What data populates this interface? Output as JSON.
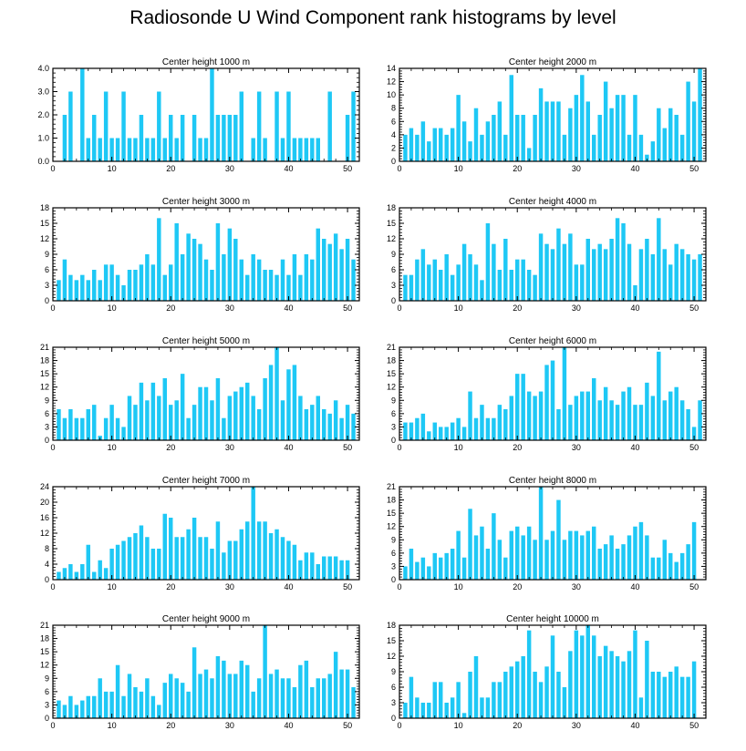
{
  "title": "Radiosonde U Wind Component rank histograms by level",
  "colors": {
    "bar": "#1ec8f5",
    "axis": "#000000",
    "background": "#ffffff"
  },
  "chart_data": [
    {
      "type": "bar",
      "title": "Center height 1000 m",
      "x": [
        1,
        2,
        3,
        4,
        5,
        6,
        7,
        8,
        9,
        10,
        11,
        12,
        13,
        14,
        15,
        16,
        17,
        18,
        19,
        20,
        21,
        22,
        23,
        24,
        25,
        26,
        27,
        28,
        29,
        30,
        31,
        32,
        33,
        34,
        35,
        36,
        37,
        38,
        39,
        40,
        41,
        42,
        43,
        44,
        45,
        46,
        47,
        48,
        49,
        50,
        51
      ],
      "values": [
        0,
        2,
        3,
        0,
        4,
        1,
        2,
        1,
        3,
        1,
        1,
        3,
        1,
        1,
        2,
        1,
        1,
        3,
        1,
        2,
        1,
        2,
        0,
        2,
        1,
        1,
        4,
        2,
        2,
        2,
        2,
        3,
        0,
        1,
        3,
        1,
        0,
        3,
        1,
        3,
        1,
        1,
        1,
        1,
        1,
        0,
        3,
        0,
        0,
        2,
        3
      ],
      "xlim": [
        0,
        52
      ],
      "ylim": [
        0,
        4
      ],
      "yticks": [
        0,
        1,
        2,
        3,
        4
      ],
      "ytick_labels": [
        "0.0",
        "1.0",
        "2.0",
        "3.0",
        "4.0"
      ],
      "xticks": [
        0,
        10,
        20,
        30,
        40,
        50
      ]
    },
    {
      "type": "bar",
      "title": "Center height 2000 m",
      "x": [
        1,
        2,
        3,
        4,
        5,
        6,
        7,
        8,
        9,
        10,
        11,
        12,
        13,
        14,
        15,
        16,
        17,
        18,
        19,
        20,
        21,
        22,
        23,
        24,
        25,
        26,
        27,
        28,
        29,
        30,
        31,
        32,
        33,
        34,
        35,
        36,
        37,
        38,
        39,
        40,
        41,
        42,
        43,
        44,
        45,
        46,
        47,
        48,
        49,
        50,
        51
      ],
      "values": [
        4,
        5,
        4,
        6,
        3,
        5,
        5,
        4,
        5,
        10,
        6,
        3,
        8,
        4,
        6,
        7,
        9,
        4,
        13,
        7,
        7,
        2,
        7,
        11,
        9,
        9,
        9,
        4,
        8,
        10,
        13,
        9,
        4,
        7,
        12,
        8,
        10,
        10,
        4,
        10,
        4,
        1,
        3,
        8,
        5,
        8,
        7,
        4,
        12,
        9,
        14
      ],
      "xlim": [
        0,
        52
      ],
      "ylim": [
        0,
        14
      ],
      "yticks": [
        0,
        2,
        4,
        6,
        8,
        10,
        12,
        14
      ],
      "ytick_labels": [
        "0",
        "2",
        "4",
        "6",
        "8",
        "10",
        "12",
        "14"
      ],
      "xticks": [
        0,
        10,
        20,
        30,
        40,
        50
      ]
    },
    {
      "type": "bar",
      "title": "Center height 3000 m",
      "x": [
        1,
        2,
        3,
        4,
        5,
        6,
        7,
        8,
        9,
        10,
        11,
        12,
        13,
        14,
        15,
        16,
        17,
        18,
        19,
        20,
        21,
        22,
        23,
        24,
        25,
        26,
        27,
        28,
        29,
        30,
        31,
        32,
        33,
        34,
        35,
        36,
        37,
        38,
        39,
        40,
        41,
        42,
        43,
        44,
        45,
        46,
        47,
        48,
        49,
        50,
        51
      ],
      "values": [
        4,
        8,
        5,
        4,
        5,
        4,
        6,
        4,
        7,
        7,
        5,
        3,
        6,
        6,
        7,
        9,
        7,
        16,
        5,
        7,
        15,
        9,
        13,
        12,
        11,
        8,
        6,
        15,
        9,
        14,
        12,
        8,
        5,
        9,
        8,
        6,
        6,
        5,
        8,
        5,
        9,
        5,
        9,
        8,
        14,
        12,
        11,
        13,
        10,
        12,
        8
      ],
      "xlim": [
        0,
        52
      ],
      "ylim": [
        0,
        18
      ],
      "yticks": [
        0,
        3,
        6,
        9,
        12,
        15,
        18
      ],
      "ytick_labels": [
        "0",
        "3",
        "6",
        "9",
        "12",
        "15",
        "18"
      ],
      "xticks": [
        0,
        10,
        20,
        30,
        40,
        50
      ]
    },
    {
      "type": "bar",
      "title": "Center height 4000 m",
      "x": [
        1,
        2,
        3,
        4,
        5,
        6,
        7,
        8,
        9,
        10,
        11,
        12,
        13,
        14,
        15,
        16,
        17,
        18,
        19,
        20,
        21,
        22,
        23,
        24,
        25,
        26,
        27,
        28,
        29,
        30,
        31,
        32,
        33,
        34,
        35,
        36,
        37,
        38,
        39,
        40,
        41,
        42,
        43,
        44,
        45,
        46,
        47,
        48,
        49,
        50,
        51
      ],
      "values": [
        5,
        5,
        8,
        10,
        7,
        8,
        6,
        9,
        5,
        7,
        11,
        9,
        7,
        4,
        15,
        11,
        6,
        12,
        6,
        8,
        8,
        6,
        5,
        13,
        11,
        10,
        14,
        11,
        13,
        7,
        7,
        12,
        10,
        11,
        10,
        12,
        16,
        15,
        11,
        3,
        10,
        12,
        9,
        16,
        10,
        7,
        11,
        10,
        9,
        8,
        9
      ],
      "xlim": [
        0,
        52
      ],
      "ylim": [
        0,
        18
      ],
      "yticks": [
        0,
        3,
        6,
        9,
        12,
        15,
        18
      ],
      "ytick_labels": [
        "0",
        "3",
        "6",
        "9",
        "12",
        "15",
        "18"
      ],
      "xticks": [
        0,
        10,
        20,
        30,
        40,
        50
      ]
    },
    {
      "type": "bar",
      "title": "Center height 5000 m",
      "x": [
        1,
        2,
        3,
        4,
        5,
        6,
        7,
        8,
        9,
        10,
        11,
        12,
        13,
        14,
        15,
        16,
        17,
        18,
        19,
        20,
        21,
        22,
        23,
        24,
        25,
        26,
        27,
        28,
        29,
        30,
        31,
        32,
        33,
        34,
        35,
        36,
        37,
        38,
        39,
        40,
        41,
        42,
        43,
        44,
        45,
        46,
        47,
        48,
        49,
        50,
        51
      ],
      "values": [
        7,
        5,
        7,
        5,
        5,
        7,
        8,
        1,
        5,
        8,
        5,
        3,
        10,
        8,
        13,
        9,
        13,
        10,
        14,
        8,
        9,
        15,
        5,
        8,
        12,
        12,
        9,
        14,
        5,
        10,
        11,
        12,
        13,
        10,
        7,
        14,
        17,
        21,
        9,
        16,
        17,
        10,
        7,
        8,
        10,
        7,
        6,
        9,
        5,
        8,
        6
      ],
      "xlim": [
        0,
        52
      ],
      "ylim": [
        0,
        21
      ],
      "yticks": [
        0,
        3,
        6,
        9,
        12,
        15,
        18,
        21
      ],
      "ytick_labels": [
        "0",
        "3",
        "6",
        "9",
        "12",
        "15",
        "18",
        "21"
      ],
      "xticks": [
        0,
        10,
        20,
        30,
        40,
        50
      ]
    },
    {
      "type": "bar",
      "title": "Center height 6000 m",
      "x": [
        1,
        2,
        3,
        4,
        5,
        6,
        7,
        8,
        9,
        10,
        11,
        12,
        13,
        14,
        15,
        16,
        17,
        18,
        19,
        20,
        21,
        22,
        23,
        24,
        25,
        26,
        27,
        28,
        29,
        30,
        31,
        32,
        33,
        34,
        35,
        36,
        37,
        38,
        39,
        40,
        41,
        42,
        43,
        44,
        45,
        46,
        47,
        48,
        49,
        50,
        51
      ],
      "values": [
        4,
        4,
        5,
        6,
        2,
        4,
        3,
        3,
        4,
        5,
        3,
        11,
        5,
        8,
        5,
        5,
        8,
        7,
        10,
        15,
        15,
        11,
        10,
        11,
        17,
        18,
        7,
        21,
        8,
        10,
        11,
        11,
        14,
        9,
        12,
        9,
        8,
        11,
        12,
        8,
        8,
        13,
        10,
        20,
        9,
        11,
        12,
        9,
        7,
        3,
        9
      ],
      "xlim": [
        0,
        52
      ],
      "ylim": [
        0,
        21
      ],
      "yticks": [
        0,
        3,
        6,
        9,
        12,
        15,
        18,
        21
      ],
      "ytick_labels": [
        "0",
        "3",
        "6",
        "9",
        "12",
        "15",
        "18",
        "21"
      ],
      "xticks": [
        0,
        10,
        20,
        30,
        40,
        50
      ]
    },
    {
      "type": "bar",
      "title": "Center height 7000 m",
      "x": [
        1,
        2,
        3,
        4,
        5,
        6,
        7,
        8,
        9,
        10,
        11,
        12,
        13,
        14,
        15,
        16,
        17,
        18,
        19,
        20,
        21,
        22,
        23,
        24,
        25,
        26,
        27,
        28,
        29,
        30,
        31,
        32,
        33,
        34,
        35,
        36,
        37,
        38,
        39,
        40,
        41,
        42,
        43,
        44,
        45,
        46,
        47,
        48,
        49,
        50,
        51
      ],
      "values": [
        2,
        3,
        4,
        2,
        4,
        9,
        2,
        5,
        3,
        8,
        9,
        10,
        11,
        12,
        14,
        11,
        8,
        8,
        17,
        16,
        11,
        11,
        13,
        16,
        11,
        11,
        8,
        15,
        7,
        10,
        10,
        13,
        15,
        24,
        15,
        15,
        12,
        13,
        11,
        10,
        9,
        5,
        7,
        7,
        4,
        6,
        6,
        6,
        5,
        5,
        0
      ],
      "xlim": [
        0,
        52
      ],
      "ylim": [
        0,
        24
      ],
      "yticks": [
        0,
        4,
        8,
        12,
        16,
        20,
        24
      ],
      "ytick_labels": [
        "0",
        "4",
        "8",
        "12",
        "16",
        "20",
        "24"
      ],
      "xticks": [
        0,
        10,
        20,
        30,
        40,
        50
      ]
    },
    {
      "type": "bar",
      "title": "Center height 8000 m",
      "x": [
        1,
        2,
        3,
        4,
        5,
        6,
        7,
        8,
        9,
        10,
        11,
        12,
        13,
        14,
        15,
        16,
        17,
        18,
        19,
        20,
        21,
        22,
        23,
        24,
        25,
        26,
        27,
        28,
        29,
        30,
        31,
        32,
        33,
        34,
        35,
        36,
        37,
        38,
        39,
        40,
        41,
        42,
        43,
        44,
        45,
        46,
        47,
        48,
        49,
        50,
        51
      ],
      "values": [
        3,
        7,
        4,
        5,
        3,
        6,
        5,
        6,
        7,
        11,
        5,
        16,
        10,
        12,
        7,
        15,
        9,
        5,
        11,
        12,
        10,
        12,
        9,
        21,
        9,
        11,
        18,
        9,
        11,
        11,
        10,
        11,
        12,
        7,
        8,
        10,
        7,
        8,
        10,
        12,
        13,
        10,
        5,
        5,
        9,
        6,
        4,
        6,
        8,
        13,
        0
      ],
      "xlim": [
        0,
        52
      ],
      "ylim": [
        0,
        21
      ],
      "yticks": [
        0,
        3,
        6,
        9,
        12,
        15,
        18,
        21
      ],
      "ytick_labels": [
        "0",
        "3",
        "6",
        "9",
        "12",
        "15",
        "18",
        "21"
      ],
      "xticks": [
        0,
        10,
        20,
        30,
        40,
        50
      ]
    },
    {
      "type": "bar",
      "title": "Center height 9000 m",
      "x": [
        1,
        2,
        3,
        4,
        5,
        6,
        7,
        8,
        9,
        10,
        11,
        12,
        13,
        14,
        15,
        16,
        17,
        18,
        19,
        20,
        21,
        22,
        23,
        24,
        25,
        26,
        27,
        28,
        29,
        30,
        31,
        32,
        33,
        34,
        35,
        36,
        37,
        38,
        39,
        40,
        41,
        42,
        43,
        44,
        45,
        46,
        47,
        48,
        49,
        50,
        51
      ],
      "values": [
        4,
        3,
        5,
        3,
        4,
        5,
        5,
        9,
        6,
        6,
        12,
        5,
        10,
        7,
        6,
        9,
        5,
        3,
        8,
        10,
        9,
        8,
        6,
        16,
        10,
        11,
        9,
        14,
        13,
        10,
        10,
        13,
        12,
        6,
        9,
        21,
        10,
        11,
        9,
        9,
        7,
        12,
        13,
        7,
        9,
        9,
        10,
        15,
        11,
        11,
        7
      ],
      "xlim": [
        0,
        52
      ],
      "ylim": [
        0,
        21
      ],
      "yticks": [
        0,
        3,
        6,
        9,
        12,
        15,
        18,
        21
      ],
      "ytick_labels": [
        "0",
        "3",
        "6",
        "9",
        "12",
        "15",
        "18",
        "21"
      ],
      "xticks": [
        0,
        10,
        20,
        30,
        40,
        50
      ]
    },
    {
      "type": "bar",
      "title": "Center height 10000 m",
      "x": [
        1,
        2,
        3,
        4,
        5,
        6,
        7,
        8,
        9,
        10,
        11,
        12,
        13,
        14,
        15,
        16,
        17,
        18,
        19,
        20,
        21,
        22,
        23,
        24,
        25,
        26,
        27,
        28,
        29,
        30,
        31,
        32,
        33,
        34,
        35,
        36,
        37,
        38,
        39,
        40,
        41,
        42,
        43,
        44,
        45,
        46,
        47,
        48,
        49,
        50,
        51
      ],
      "values": [
        3,
        8,
        4,
        3,
        3,
        7,
        7,
        3,
        4,
        7,
        1,
        9,
        12,
        4,
        4,
        7,
        7,
        9,
        10,
        11,
        12,
        17,
        9,
        7,
        10,
        16,
        9,
        6,
        13,
        17,
        16,
        18,
        16,
        12,
        14,
        13,
        12,
        11,
        13,
        17,
        4,
        15,
        9,
        9,
        8,
        9,
        10,
        8,
        8,
        11,
        0
      ],
      "xlim": [
        0,
        52
      ],
      "ylim": [
        0,
        18
      ],
      "yticks": [
        0,
        3,
        6,
        9,
        12,
        15,
        18
      ],
      "ytick_labels": [
        "0",
        "3",
        "6",
        "9",
        "12",
        "15",
        "18"
      ],
      "xticks": [
        0,
        10,
        20,
        30,
        40,
        50
      ]
    }
  ]
}
